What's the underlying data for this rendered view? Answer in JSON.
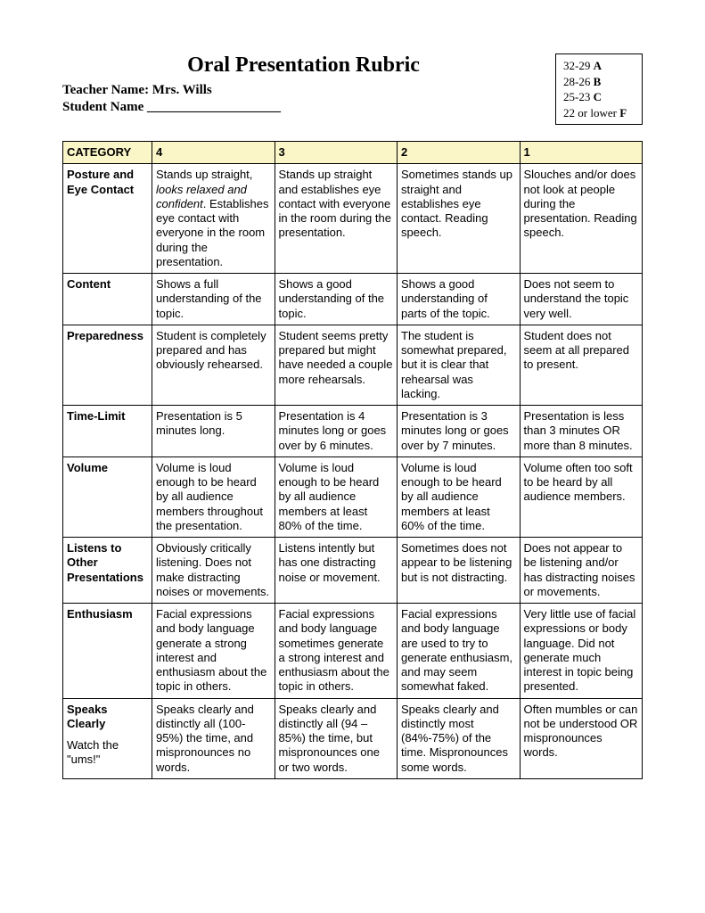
{
  "title": "Oral Presentation Rubric",
  "teacher_label": "Teacher Name: Mrs. Wills",
  "student_label": "Student Name ____________________",
  "grade_scale": [
    {
      "range": "32-29",
      "letter": "A"
    },
    {
      "range": "28-26",
      "letter": "B"
    },
    {
      "range": "25-23",
      "letter": "C"
    },
    {
      "range": "22 or lower",
      "letter": "F"
    }
  ],
  "headers": {
    "category": "CATEGORY",
    "s4": "4",
    "s3": "3",
    "s2": "2",
    "s1": "1"
  },
  "rows": [
    {
      "category": "Posture and Eye Contact",
      "c4_pre": "Stands up straight, ",
      "c4_italic": "looks relaxed and confident",
      "c4_post": ". Establishes eye contact with everyone in the room during the presentation.",
      "c3": "Stands up straight and establishes eye contact with everyone in the room during the presentation.",
      "c2": "Sometimes stands up straight and establishes eye contact. Reading speech.",
      "c1": "Slouches and/or does not look at people during the presentation. Reading speech."
    },
    {
      "category": "Content",
      "c4": "Shows a full understanding of the topic.",
      "c3": "Shows a good understanding of the topic.",
      "c2": "Shows a good understanding of parts of the topic.",
      "c1": "Does not seem to understand the topic very well."
    },
    {
      "category": "Preparedness",
      "c4": "Student is completely prepared and has obviously rehearsed.",
      "c3": "Student seems pretty prepared but might have needed a couple more rehearsals.",
      "c2": "The student is somewhat prepared, but it is clear that rehearsal was lacking.",
      "c1": "Student does not seem at all prepared to present."
    },
    {
      "category": "Time-Limit",
      "c4": "Presentation is 5 minutes long.",
      "c3": "Presentation is 4 minutes long or goes over by 6 minutes.",
      "c2": "Presentation is 3 minutes long or goes over by 7 minutes.",
      "c1": "Presentation is less than 3 minutes OR more than 8 minutes."
    },
    {
      "category": "Volume",
      "c4": "Volume is loud enough to be heard by all audience members throughout the presentation.",
      "c3": "Volume is loud enough to be heard by all audience members at least 80% of the time.",
      "c2": "Volume is loud enough to be heard by all audience members at least 60% of the time.",
      "c1": "Volume often too soft to be heard by all audience members."
    },
    {
      "category": "Listens to Other Presentations",
      "c4": "Obviously critically listening. Does not make distracting noises or movements.",
      "c3": "Listens intently but has one distracting noise or movement.",
      "c2": "Sometimes does not appear to be listening but is not distracting.",
      "c1": "Does not appear to be listening and/or has distracting noises or movements."
    },
    {
      "category": "Enthusiasm",
      "c4": "Facial expressions and body language generate a strong interest and enthusiasm about the topic in others.",
      "c3": "Facial expressions and body language sometimes generate a strong interest and enthusiasm about the topic in others.",
      "c2": "Facial expressions and body language are used to try to generate enthusiasm, and may seem somewhat faked.",
      "c1": "Very little use of facial expressions or body language. Did not generate much interest in topic being presented."
    },
    {
      "category": "Speaks Clearly",
      "cat_note": "Watch the \"ums!\"",
      "c4": "Speaks clearly and distinctly all (100-95%) the time, and mispronounces no words.",
      "c3": "Speaks clearly and distinctly all (94 – 85%) the time, but mispronounces one or two words.",
      "c2": "Speaks clearly and distinctly most (84%-75%) of the time. Mispronounces some words.",
      "c1": "Often mumbles or can not be understood OR mispronounces words."
    }
  ]
}
